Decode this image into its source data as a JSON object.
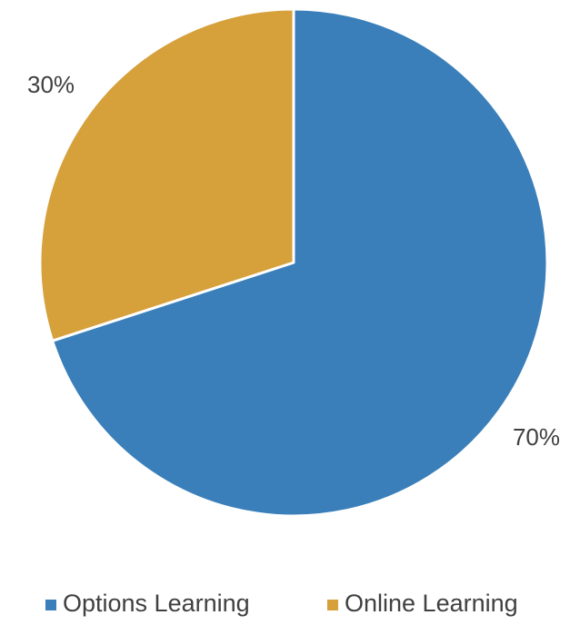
{
  "chart_data": {
    "type": "pie",
    "title": "",
    "slices": [
      {
        "label": "Options Learning",
        "value": 70,
        "value_label": "70%",
        "color": "#3a7fba"
      },
      {
        "label": "Online Learning",
        "value": 30,
        "value_label": "30%",
        "color": "#d6a03b"
      }
    ],
    "start_angle_deg": 0,
    "direction": "clockwise",
    "legend": {
      "placement": "bottom",
      "entries": [
        "Options Learning",
        "Online Learning"
      ]
    },
    "data_labels": "outside"
  }
}
